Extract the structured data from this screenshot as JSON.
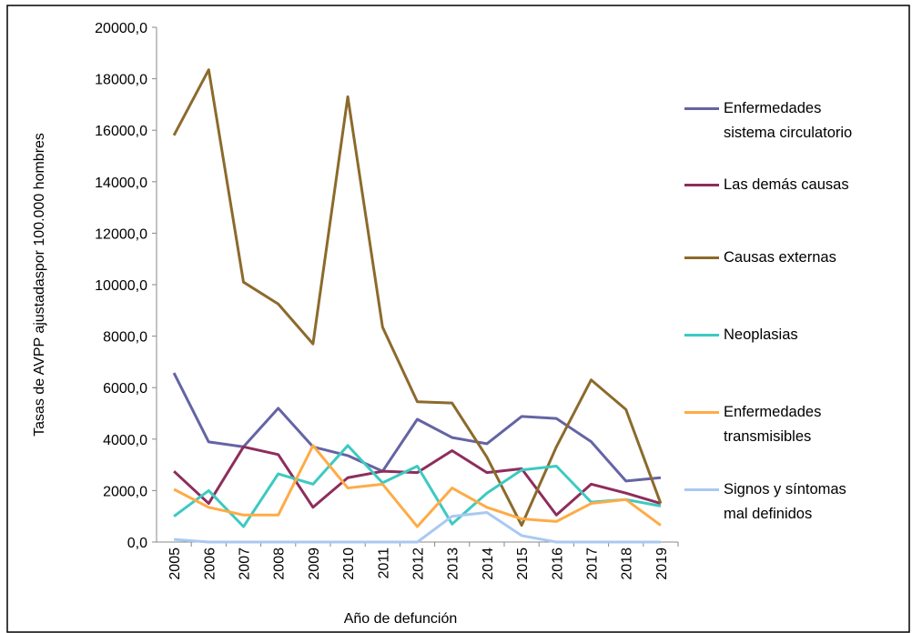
{
  "chart_data": {
    "type": "line",
    "x_label": "Año de defunción",
    "y_label": "Tasas de AVPP ajustadaspor 100.000 hombres",
    "categories": [
      "2005",
      "2006",
      "2007",
      "2008",
      "2009",
      "2010",
      "2011",
      "2012",
      "2013",
      "2014",
      "2015",
      "2016",
      "2017",
      "2018",
      "2019"
    ],
    "series": [
      {
        "name": "Enfermedades sistema circulatorio",
        "color": "#6464a4",
        "values": [
          6570,
          3890,
          3700,
          5200,
          3700,
          3360,
          2750,
          4770,
          4060,
          3820,
          4880,
          4800,
          3900,
          2370,
          2500
        ]
      },
      {
        "name": "Las demás causas",
        "color": "#8e2d5c",
        "values": [
          2750,
          1500,
          3700,
          3400,
          1350,
          2500,
          2750,
          2700,
          3550,
          2700,
          2850,
          1050,
          2250,
          1900,
          1500
        ]
      },
      {
        "name": "Causas externas",
        "color": "#8c6a2c",
        "values": [
          15800,
          18350,
          10100,
          9250,
          7700,
          17300,
          8350,
          5450,
          5400,
          3300,
          650,
          3700,
          6300,
          5150,
          1500
        ]
      },
      {
        "name": "Neoplasias",
        "color": "#3ccac2",
        "values": [
          1000,
          2000,
          600,
          2650,
          2250,
          3750,
          2300,
          2950,
          700,
          1900,
          2800,
          2950,
          1550,
          1650,
          1400
        ]
      },
      {
        "name": "Enfermedades transmisibles",
        "color": "#ffab46",
        "values": [
          2050,
          1350,
          1050,
          1050,
          3750,
          2100,
          2250,
          600,
          2100,
          1350,
          900,
          800,
          1500,
          1650,
          650
        ]
      },
      {
        "name": "Signos y síntomas mal definidos",
        "color": "#a9c9f2",
        "values": [
          100,
          0,
          0,
          0,
          0,
          0,
          0,
          0,
          1000,
          1150,
          250,
          0,
          0,
          0,
          0
        ]
      }
    ],
    "ylim": [
      0,
      20000
    ],
    "yticks": [
      {
        "value": 0,
        "label": "0,0"
      },
      {
        "value": 2000,
        "label": "2000,0"
      },
      {
        "value": 4000,
        "label": "4000,0"
      },
      {
        "value": 6000,
        "label": "6000,0"
      },
      {
        "value": 8000,
        "label": "8000,0"
      },
      {
        "value": 10000,
        "label": "10000,0"
      },
      {
        "value": 12000,
        "label": "12000,0"
      },
      {
        "value": 14000,
        "label": "14000,0"
      },
      {
        "value": 16000,
        "label": "16000,0"
      },
      {
        "value": 18000,
        "label": "18000,0"
      },
      {
        "value": 20000,
        "label": "20000,0"
      }
    ]
  }
}
